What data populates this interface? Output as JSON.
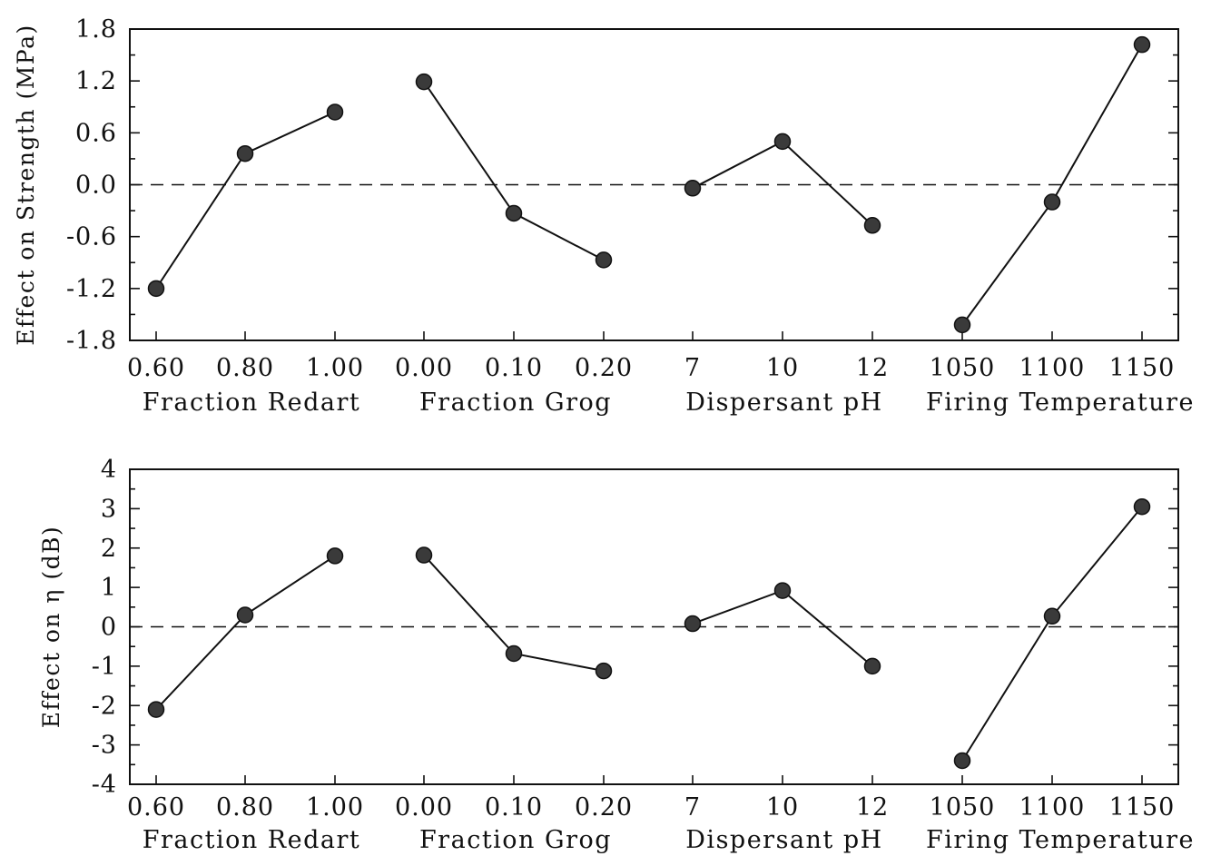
{
  "chart_data": [
    {
      "type": "line",
      "ylabel": "Effect on Strength (MPa)",
      "ylim": [
        -1.8,
        1.8
      ],
      "yticks": [
        "1.8",
        "1.2",
        "0.6",
        "0.0",
        "-0.6",
        "-1.2",
        "-1.8"
      ],
      "ytick_values": [
        1.8,
        1.2,
        0.6,
        0.0,
        -0.6,
        -1.2,
        -1.8
      ],
      "minor_y_step": 0.3,
      "reference_line": 0,
      "groups": [
        {
          "label": "Fraction Redart",
          "x": [
            "0.60",
            "0.80",
            "1.00"
          ],
          "values": [
            -1.2,
            0.36,
            0.84
          ]
        },
        {
          "label": "Fraction Grog",
          "x": [
            "0.00",
            "0.10",
            "0.20"
          ],
          "values": [
            1.19,
            -0.33,
            -0.87
          ]
        },
        {
          "label": "Dispersant pH",
          "x": [
            "7",
            "10",
            "12"
          ],
          "values": [
            -0.04,
            0.5,
            -0.47
          ]
        },
        {
          "label": "Firing Temperature",
          "x": [
            "1050",
            "1100",
            "1150"
          ],
          "values": [
            -1.62,
            -0.2,
            1.62
          ]
        }
      ]
    },
    {
      "type": "line",
      "ylabel": "Effect on η (dB)",
      "ylim": [
        -4,
        4
      ],
      "yticks": [
        "4",
        "3",
        "2",
        "1",
        "0",
        "-1",
        "-2",
        "-3",
        "-4"
      ],
      "ytick_values": [
        4,
        3,
        2,
        1,
        0,
        -1,
        -2,
        -3,
        -4
      ],
      "minor_y_step": 0.5,
      "reference_line": 0,
      "groups": [
        {
          "label": "Fraction Redart",
          "x": [
            "0.60",
            "0.80",
            "1.00"
          ],
          "values": [
            -2.1,
            0.3,
            1.8
          ]
        },
        {
          "label": "Fraction Grog",
          "x": [
            "0.00",
            "0.10",
            "0.20"
          ],
          "values": [
            1.82,
            -0.68,
            -1.12
          ]
        },
        {
          "label": "Dispersant pH",
          "x": [
            "7",
            "10",
            "12"
          ],
          "values": [
            0.08,
            0.92,
            -1.0
          ]
        },
        {
          "label": "Firing Temperature",
          "x": [
            "1050",
            "1100",
            "1150"
          ],
          "values": [
            -3.4,
            0.27,
            3.05
          ]
        }
      ]
    }
  ]
}
